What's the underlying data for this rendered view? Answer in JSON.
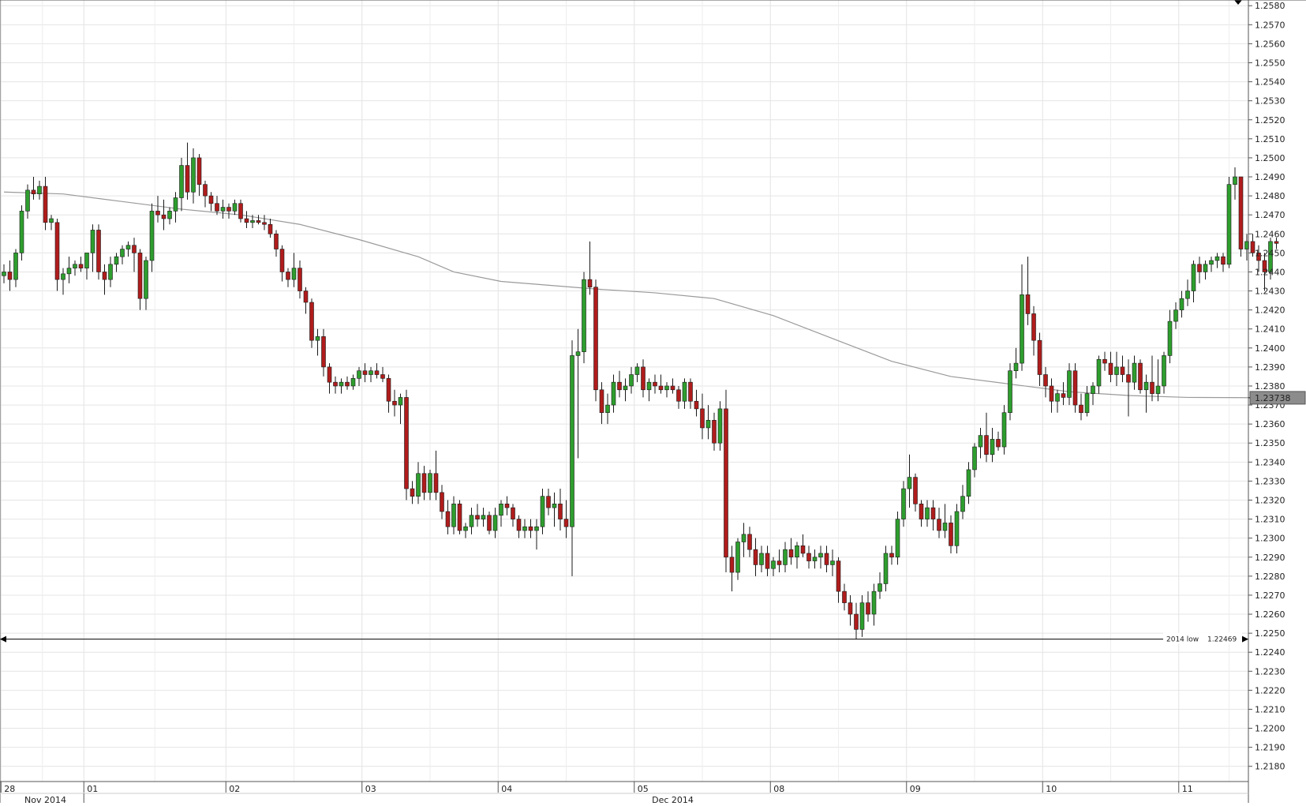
{
  "chart_data": {
    "type": "candlestick",
    "ylim": [
      1.2172,
      1.2583
    ],
    "yticks": [
      "1.2580",
      "1.2570",
      "1.2560",
      "1.2550",
      "1.2540",
      "1.2530",
      "1.2520",
      "1.2510",
      "1.2500",
      "1.2490",
      "1.2480",
      "1.2470",
      "1.2460",
      "1.2450",
      "1.2440",
      "1.2430",
      "1.2420",
      "1.2410",
      "1.2400",
      "1.2390",
      "1.2380",
      "1.2370",
      "1.2360",
      "1.2350",
      "1.2340",
      "1.2330",
      "1.2320",
      "1.2310",
      "1.2300",
      "1.2290",
      "1.2280",
      "1.2270",
      "1.2260",
      "1.2250",
      "1.2240",
      "1.2230",
      "1.2220",
      "1.2210",
      "1.2200",
      "1.2190",
      "1.2180"
    ],
    "day_labels": [
      {
        "label": "28",
        "index": 0
      },
      {
        "label": "01",
        "index": 14
      },
      {
        "label": "02",
        "index": 38
      },
      {
        "label": "03",
        "index": 61
      },
      {
        "label": "04",
        "index": 84
      },
      {
        "label": "05",
        "index": 107
      },
      {
        "label": "08",
        "index": 130
      },
      {
        "label": "09",
        "index": 153
      },
      {
        "label": "10",
        "index": 176
      },
      {
        "label": "11",
        "index": 199
      }
    ],
    "month_labels": [
      {
        "label": "Nov 2014",
        "index": 7
      },
      {
        "label": "Dec 2014",
        "index": 113
      }
    ],
    "current_price": {
      "label": "1.23738",
      "value": 1.23738
    },
    "low_line": {
      "label": "2014 low",
      "value_label": "1.22469",
      "value": 1.22469
    },
    "moving_average": [
      [
        0,
        1.2482
      ],
      [
        10,
        1.2481
      ],
      [
        20,
        1.2477
      ],
      [
        30,
        1.2473
      ],
      [
        40,
        1.247
      ],
      [
        50,
        1.2465
      ],
      [
        60,
        1.2457
      ],
      [
        70,
        1.2448
      ],
      [
        76,
        1.244
      ],
      [
        84,
        1.2435
      ],
      [
        100,
        1.2431
      ],
      [
        110,
        1.2429
      ],
      [
        120,
        1.2426
      ],
      [
        130,
        1.2417
      ],
      [
        140,
        1.2405
      ],
      [
        150,
        1.2393
      ],
      [
        160,
        1.2385
      ],
      [
        170,
        1.2381
      ],
      [
        180,
        1.2377
      ],
      [
        190,
        1.2375
      ],
      [
        200,
        1.2374
      ],
      [
        214,
        1.23738
      ]
    ],
    "candles": [
      [
        1.2438,
        1.2444,
        1.2434,
        1.244
      ],
      [
        1.244,
        1.2446,
        1.243,
        1.2436
      ],
      [
        1.2436,
        1.2452,
        1.2432,
        1.245
      ],
      [
        1.245,
        1.2475,
        1.2446,
        1.2472
      ],
      [
        1.2472,
        1.2486,
        1.2468,
        1.2483
      ],
      [
        1.2483,
        1.249,
        1.2478,
        1.2481
      ],
      [
        1.2481,
        1.2488,
        1.2478,
        1.2485
      ],
      [
        1.2485,
        1.249,
        1.2462,
        1.2466
      ],
      [
        1.2466,
        1.247,
        1.2462,
        1.2468
      ],
      [
        1.2466,
        1.2468,
        1.243,
        1.2436
      ],
      [
        1.2436,
        1.2442,
        1.2428,
        1.2439
      ],
      [
        1.2439,
        1.2448,
        1.2434,
        1.2442
      ],
      [
        1.2442,
        1.2446,
        1.2438,
        1.2444
      ],
      [
        1.2444,
        1.2448,
        1.244,
        1.2442
      ],
      [
        1.2442,
        1.2446,
        1.2436,
        1.245
      ],
      [
        1.245,
        1.2465,
        1.244,
        1.2462
      ],
      [
        1.2462,
        1.2465,
        1.2436,
        1.244
      ],
      [
        1.244,
        1.2444,
        1.2428,
        1.2436
      ],
      [
        1.2436,
        1.2448,
        1.2432,
        1.2444
      ],
      [
        1.2444,
        1.245,
        1.244,
        1.2448
      ],
      [
        1.2448,
        1.2454,
        1.2444,
        1.2452
      ],
      [
        1.2452,
        1.2456,
        1.2448,
        1.2454
      ],
      [
        1.2454,
        1.2458,
        1.244,
        1.245
      ],
      [
        1.245,
        1.2452,
        1.242,
        1.2426
      ],
      [
        1.2426,
        1.2448,
        1.242,
        1.2446
      ],
      [
        1.2446,
        1.2476,
        1.244,
        1.2472
      ],
      [
        1.2472,
        1.248,
        1.2466,
        1.247
      ],
      [
        1.247,
        1.2478,
        1.2462,
        1.2468
      ],
      [
        1.2468,
        1.2474,
        1.2465,
        1.2472
      ],
      [
        1.2472,
        1.2482,
        1.2466,
        1.2479
      ],
      [
        1.2479,
        1.25,
        1.2472,
        1.2496
      ],
      [
        1.2496,
        1.2508,
        1.2478,
        1.2482
      ],
      [
        1.2482,
        1.2505,
        1.2476,
        1.25
      ],
      [
        1.25,
        1.2502,
        1.248,
        1.2486
      ],
      [
        1.2486,
        1.2488,
        1.2474,
        1.248
      ],
      [
        1.248,
        1.2482,
        1.2472,
        1.2476
      ],
      [
        1.2476,
        1.248,
        1.247,
        1.2472
      ],
      [
        1.2472,
        1.2478,
        1.2468,
        1.2474
      ],
      [
        1.2474,
        1.2476,
        1.2468,
        1.2472
      ],
      [
        1.2472,
        1.2478,
        1.247,
        1.2476
      ],
      [
        1.2476,
        1.2478,
        1.2466,
        1.2468
      ],
      [
        1.2468,
        1.2472,
        1.2463,
        1.2466
      ],
      [
        1.2466,
        1.247,
        1.2463,
        1.2467
      ],
      [
        1.2467,
        1.247,
        1.2465,
        1.2466
      ],
      [
        1.2466,
        1.247,
        1.2462,
        1.2465
      ],
      [
        1.2465,
        1.2468,
        1.2458,
        1.246
      ],
      [
        1.246,
        1.2462,
        1.2448,
        1.2452
      ],
      [
        1.2452,
        1.2454,
        1.2435,
        1.244
      ],
      [
        1.244,
        1.2442,
        1.2432,
        1.2436
      ],
      [
        1.2436,
        1.245,
        1.2432,
        1.2442
      ],
      [
        1.2442,
        1.2446,
        1.2426,
        1.243
      ],
      [
        1.243,
        1.2432,
        1.2418,
        1.2424
      ],
      [
        1.2424,
        1.2426,
        1.24,
        1.2404
      ],
      [
        1.2404,
        1.241,
        1.2396,
        1.2406
      ],
      [
        1.2406,
        1.241,
        1.2385,
        1.239
      ],
      [
        1.239,
        1.2392,
        1.2376,
        1.2382
      ],
      [
        1.2382,
        1.2385,
        1.2376,
        1.238
      ],
      [
        1.238,
        1.2384,
        1.2376,
        1.2382
      ],
      [
        1.2382,
        1.2385,
        1.2378,
        1.238
      ],
      [
        1.238,
        1.2386,
        1.2378,
        1.2384
      ],
      [
        1.2384,
        1.239,
        1.238,
        1.2388
      ],
      [
        1.2388,
        1.2392,
        1.2382,
        1.2386
      ],
      [
        1.2386,
        1.239,
        1.2382,
        1.2388
      ],
      [
        1.2388,
        1.2392,
        1.2384,
        1.2386
      ],
      [
        1.2386,
        1.239,
        1.2382,
        1.2384
      ],
      [
        1.2384,
        1.2386,
        1.2366,
        1.2372
      ],
      [
        1.2372,
        1.2378,
        1.2364,
        1.237
      ],
      [
        1.237,
        1.2376,
        1.236,
        1.2374
      ],
      [
        1.2374,
        1.2378,
        1.232,
        1.2326
      ],
      [
        1.2326,
        1.233,
        1.2318,
        1.2322
      ],
      [
        1.2322,
        1.234,
        1.2318,
        1.2334
      ],
      [
        1.2334,
        1.2338,
        1.232,
        1.2324
      ],
      [
        1.2324,
        1.2336,
        1.232,
        1.2334
      ],
      [
        1.2334,
        1.2346,
        1.232,
        1.2324
      ],
      [
        1.2324,
        1.2328,
        1.231,
        1.2314
      ],
      [
        1.2314,
        1.232,
        1.2302,
        1.2306
      ],
      [
        1.2306,
        1.2322,
        1.2302,
        1.2318
      ],
      [
        1.2318,
        1.232,
        1.2302,
        1.2304
      ],
      [
        1.2304,
        1.2308,
        1.23,
        1.2306
      ],
      [
        1.2306,
        1.2316,
        1.2302,
        1.2312
      ],
      [
        1.2312,
        1.2318,
        1.2306,
        1.231
      ],
      [
        1.231,
        1.2316,
        1.2306,
        1.2312
      ],
      [
        1.2312,
        1.2314,
        1.2302,
        1.2304
      ],
      [
        1.2304,
        1.2316,
        1.23,
        1.2312
      ],
      [
        1.2312,
        1.232,
        1.2306,
        1.2318
      ],
      [
        1.2318,
        1.2322,
        1.2312,
        1.2316
      ],
      [
        1.2316,
        1.2318,
        1.2306,
        1.231
      ],
      [
        1.231,
        1.2312,
        1.23,
        1.2304
      ],
      [
        1.2304,
        1.231,
        1.23,
        1.2306
      ],
      [
        1.2306,
        1.231,
        1.23,
        1.2304
      ],
      [
        1.2304,
        1.231,
        1.2294,
        1.2306
      ],
      [
        1.2306,
        1.2326,
        1.2302,
        1.2322
      ],
      [
        1.2322,
        1.2326,
        1.2312,
        1.2316
      ],
      [
        1.2316,
        1.2324,
        1.2306,
        1.2318
      ],
      [
        1.2318,
        1.2326,
        1.2304,
        1.231
      ],
      [
        1.231,
        1.232,
        1.23,
        1.2306
      ],
      [
        1.2306,
        1.2404,
        1.228,
        1.2396
      ],
      [
        1.2396,
        1.241,
        1.2342,
        1.2398
      ],
      [
        1.2398,
        1.244,
        1.2392,
        1.2436
      ],
      [
        1.2436,
        1.2456,
        1.2428,
        1.2432
      ],
      [
        1.2432,
        1.2436,
        1.2372,
        1.2378
      ],
      [
        1.2378,
        1.2382,
        1.236,
        1.2366
      ],
      [
        1.2366,
        1.2376,
        1.236,
        1.237
      ],
      [
        1.237,
        1.2386,
        1.2366,
        1.2382
      ],
      [
        1.2382,
        1.2388,
        1.2374,
        1.2378
      ],
      [
        1.2378,
        1.2384,
        1.2372,
        1.238
      ],
      [
        1.238,
        1.239,
        1.2376,
        1.2386
      ],
      [
        1.2386,
        1.2392,
        1.2382,
        1.239
      ],
      [
        1.239,
        1.2394,
        1.2374,
        1.2378
      ],
      [
        1.2378,
        1.2384,
        1.2372,
        1.2382
      ],
      [
        1.2382,
        1.2386,
        1.2376,
        1.238
      ],
      [
        1.238,
        1.2386,
        1.2376,
        1.2378
      ],
      [
        1.2378,
        1.2382,
        1.2374,
        1.238
      ],
      [
        1.238,
        1.2384,
        1.2376,
        1.2378
      ],
      [
        1.2378,
        1.238,
        1.2368,
        1.2372
      ],
      [
        1.2372,
        1.2384,
        1.2368,
        1.2382
      ],
      [
        1.2382,
        1.2384,
        1.2368,
        1.2372
      ],
      [
        1.2372,
        1.2378,
        1.2364,
        1.2368
      ],
      [
        1.2368,
        1.2376,
        1.2352,
        1.2358
      ],
      [
        1.2358,
        1.237,
        1.2352,
        1.2362
      ],
      [
        1.2362,
        1.2366,
        1.2346,
        1.235
      ],
      [
        1.235,
        1.2372,
        1.2346,
        1.2368
      ],
      [
        1.2368,
        1.2378,
        1.2282,
        1.229
      ],
      [
        1.229,
        1.2296,
        1.2272,
        1.2282
      ],
      [
        1.2282,
        1.23,
        1.2278,
        1.2298
      ],
      [
        1.2298,
        1.2308,
        1.229,
        1.2302
      ],
      [
        1.2302,
        1.2306,
        1.229,
        1.2294
      ],
      [
        1.2294,
        1.23,
        1.228,
        1.2286
      ],
      [
        1.2286,
        1.2296,
        1.2282,
        1.2292
      ],
      [
        1.2292,
        1.2296,
        1.228,
        1.2284
      ],
      [
        1.2284,
        1.229,
        1.228,
        1.2288
      ],
      [
        1.2288,
        1.2294,
        1.2282,
        1.2286
      ],
      [
        1.2286,
        1.2298,
        1.2282,
        1.2294
      ],
      [
        1.2294,
        1.23,
        1.2286,
        1.229
      ],
      [
        1.229,
        1.2298,
        1.2284,
        1.2296
      ],
      [
        1.2296,
        1.2302,
        1.229,
        1.2292
      ],
      [
        1.2292,
        1.2296,
        1.2284,
        1.2288
      ],
      [
        1.2288,
        1.2294,
        1.2284,
        1.229
      ],
      [
        1.229,
        1.2296,
        1.2284,
        1.2292
      ],
      [
        1.2292,
        1.2296,
        1.2282,
        1.2286
      ],
      [
        1.2286,
        1.2294,
        1.228,
        1.2288
      ],
      [
        1.2288,
        1.229,
        1.2266,
        1.2272
      ],
      [
        1.2272,
        1.2276,
        1.2262,
        1.2266
      ],
      [
        1.2266,
        1.227,
        1.2254,
        1.226
      ],
      [
        1.226,
        1.2266,
        1.2247,
        1.2252
      ],
      [
        1.2252,
        1.227,
        1.2248,
        1.2266
      ],
      [
        1.2266,
        1.2272,
        1.2256,
        1.226
      ],
      [
        1.226,
        1.2276,
        1.2254,
        1.2272
      ],
      [
        1.2272,
        1.2282,
        1.2268,
        1.2276
      ],
      [
        1.2276,
        1.2296,
        1.2272,
        1.2292
      ],
      [
        1.2292,
        1.2296,
        1.2286,
        1.229
      ],
      [
        1.229,
        1.2314,
        1.2286,
        1.231
      ],
      [
        1.231,
        1.233,
        1.2306,
        1.2326
      ],
      [
        1.2326,
        1.2344,
        1.2316,
        1.2332
      ],
      [
        1.2332,
        1.2334,
        1.2314,
        1.2318
      ],
      [
        1.2318,
        1.232,
        1.2306,
        1.231
      ],
      [
        1.231,
        1.232,
        1.2306,
        1.2316
      ],
      [
        1.2316,
        1.232,
        1.2304,
        1.231
      ],
      [
        1.231,
        1.2316,
        1.23,
        1.2304
      ],
      [
        1.2304,
        1.2318,
        1.23,
        1.2308
      ],
      [
        1.2308,
        1.2312,
        1.2292,
        1.2296
      ],
      [
        1.2296,
        1.2318,
        1.2292,
        1.2314
      ],
      [
        1.2314,
        1.2328,
        1.231,
        1.2322
      ],
      [
        1.2322,
        1.234,
        1.2318,
        1.2336
      ],
      [
        1.2336,
        1.235,
        1.2332,
        1.2348
      ],
      [
        1.2348,
        1.2358,
        1.2342,
        1.2354
      ],
      [
        1.2354,
        1.2366,
        1.234,
        1.2344
      ],
      [
        1.2344,
        1.2358,
        1.234,
        1.2352
      ],
      [
        1.2352,
        1.2356,
        1.2346,
        1.2348
      ],
      [
        1.2348,
        1.237,
        1.2344,
        1.2366
      ],
      [
        1.2366,
        1.2392,
        1.2362,
        1.2388
      ],
      [
        1.2388,
        1.24,
        1.2384,
        1.2392
      ],
      [
        1.2392,
        1.2444,
        1.2388,
        1.2428
      ],
      [
        1.2428,
        1.2448,
        1.2412,
        1.2418
      ],
      [
        1.2418,
        1.2422,
        1.2396,
        1.2404
      ],
      [
        1.2404,
        1.2408,
        1.238,
        1.2386
      ],
      [
        1.2386,
        1.239,
        1.2374,
        1.238
      ],
      [
        1.238,
        1.2384,
        1.2366,
        1.2372
      ],
      [
        1.2372,
        1.2378,
        1.2366,
        1.2376
      ],
      [
        1.2376,
        1.2382,
        1.237,
        1.2374
      ],
      [
        1.2374,
        1.2392,
        1.237,
        1.2388
      ],
      [
        1.2388,
        1.2392,
        1.2366,
        1.237
      ],
      [
        1.237,
        1.2376,
        1.2362,
        1.2366
      ],
      [
        1.2366,
        1.238,
        1.2364,
        1.2376
      ],
      [
        1.2376,
        1.2382,
        1.237,
        1.238
      ],
      [
        1.238,
        1.2396,
        1.2376,
        1.2394
      ],
      [
        1.2394,
        1.2398,
        1.2388,
        1.2392
      ],
      [
        1.2392,
        1.2398,
        1.2382,
        1.2386
      ],
      [
        1.2386,
        1.2398,
        1.238,
        1.239
      ],
      [
        1.239,
        1.2396,
        1.2382,
        1.2386
      ],
      [
        1.2386,
        1.2394,
        1.2364,
        1.2382
      ],
      [
        1.2382,
        1.2396,
        1.2378,
        1.2392
      ],
      [
        1.2392,
        1.2394,
        1.2376,
        1.2378
      ],
      [
        1.2378,
        1.2386,
        1.2366,
        1.2382
      ],
      [
        1.2382,
        1.2396,
        1.2372,
        1.2376
      ],
      [
        1.2376,
        1.2394,
        1.2372,
        1.238
      ],
      [
        1.238,
        1.2398,
        1.2376,
        1.2396
      ],
      [
        1.2396,
        1.242,
        1.2392,
        1.2414
      ],
      [
        1.2414,
        1.2424,
        1.241,
        1.242
      ],
      [
        1.242,
        1.243,
        1.2416,
        1.2426
      ],
      [
        1.2426,
        1.2436,
        1.2422,
        1.243
      ],
      [
        1.243,
        1.2446,
        1.2424,
        1.2444
      ],
      [
        1.2444,
        1.2448,
        1.2434,
        1.244
      ],
      [
        1.244,
        1.2446,
        1.2436,
        1.2444
      ],
      [
        1.2444,
        1.2448,
        1.244,
        1.2446
      ],
      [
        1.2446,
        1.245,
        1.2442,
        1.2448
      ],
      [
        1.2448,
        1.245,
        1.244,
        1.2444
      ],
      [
        1.2444,
        1.249,
        1.2442,
        1.2486
      ],
      [
        1.2486,
        1.2495,
        1.2478,
        1.249
      ],
      [
        1.249,
        1.249,
        1.2448,
        1.2452
      ],
      [
        1.2452,
        1.246,
        1.2446,
        1.2456
      ],
      [
        1.2456,
        1.246,
        1.2448,
        1.245
      ],
      [
        1.245,
        1.2454,
        1.244,
        1.2446
      ],
      [
        1.2446,
        1.245,
        1.243,
        1.244
      ],
      [
        1.244,
        1.2458,
        1.2436,
        1.2456
      ],
      [
        1.2456,
        1.2458,
        1.2452,
        1.2455
      ]
    ]
  }
}
